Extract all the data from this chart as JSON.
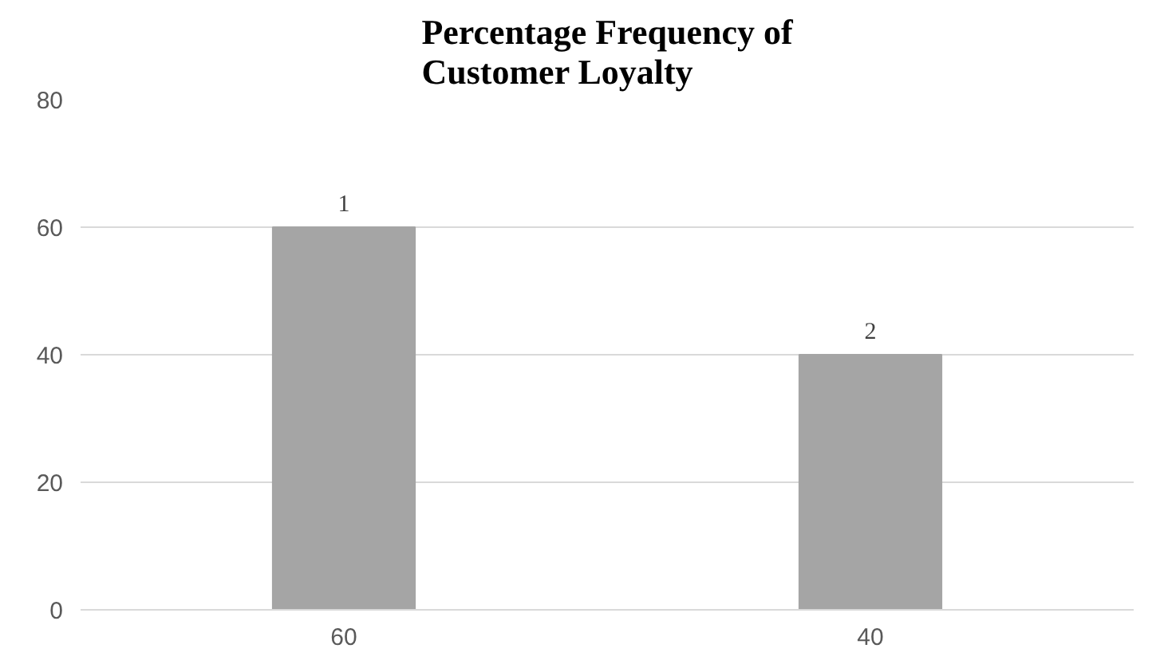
{
  "chart_data": {
    "type": "bar",
    "title": "Percentage Frequency of\nCustomer Loyalty",
    "categories": [
      "60",
      "40"
    ],
    "values": [
      60,
      40
    ],
    "annotations": [
      {
        "text": "1",
        "x": "60",
        "y": 60
      },
      {
        "text": "2",
        "x": "40",
        "y": 40
      }
    ],
    "color": "#a5a5a5",
    "ylim": [
      0,
      80
    ],
    "yticks": [
      0,
      20,
      40,
      60,
      80
    ],
    "grid": "y"
  }
}
